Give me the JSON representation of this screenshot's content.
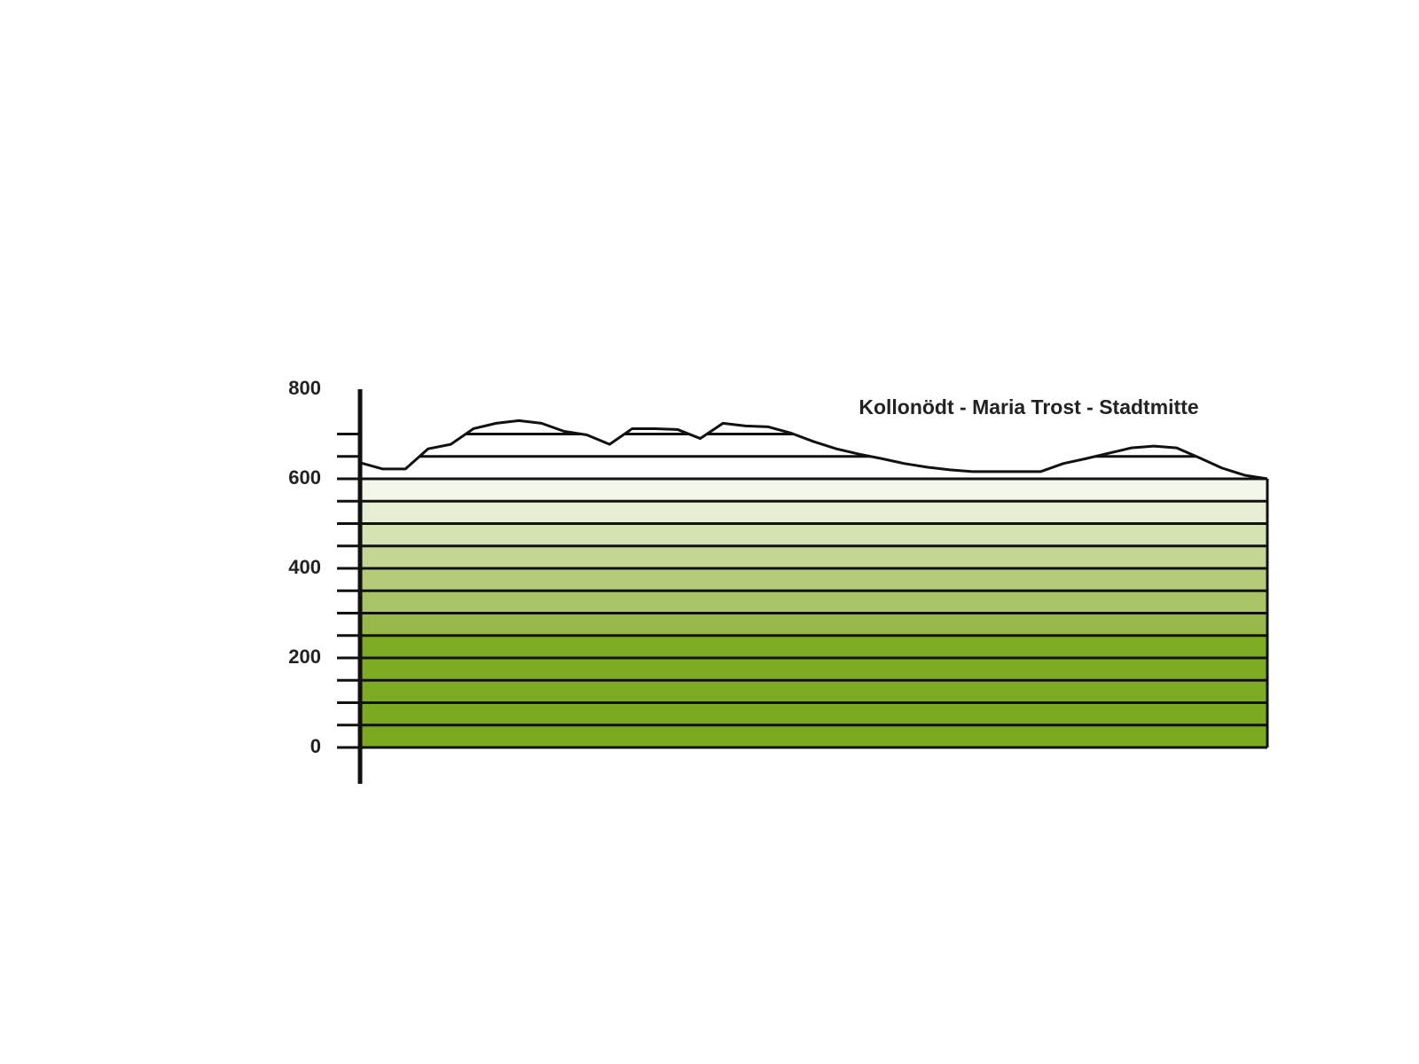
{
  "chart_data": {
    "type": "line",
    "title": "Kollonödt - Maria Trost - Stadtmitte",
    "categories": [
      null,
      null,
      null,
      null,
      null,
      null,
      null,
      null,
      null,
      null,
      null,
      null,
      null,
      null,
      null,
      null,
      null,
      null,
      null,
      null,
      null,
      null,
      null,
      null,
      null,
      null,
      null,
      null,
      null,
      null,
      null,
      null,
      null,
      null,
      null,
      null,
      null,
      null,
      null,
      null,
      null
    ],
    "series": [
      {
        "color": "#111111",
        "values": [
          636,
          622,
          622,
          667,
          677,
          712,
          724,
          730,
          724,
          706,
          698,
          677,
          712,
          712,
          710,
          690,
          724,
          718,
          716,
          702,
          683,
          667,
          655,
          645,
          634,
          626,
          620,
          616,
          616,
          616,
          616,
          634,
          645,
          657,
          669,
          673,
          669,
          647,
          624,
          608,
          600
        ]
      }
    ],
    "ylim": [
      0,
      800
    ],
    "yticks": [
      0,
      200,
      400,
      600,
      800
    ],
    "minor_yticks": [
      0,
      50,
      100,
      150,
      200,
      250,
      300,
      350,
      400,
      450,
      500,
      550,
      600,
      650,
      700
    ],
    "fill_base": 600,
    "band_colors": [
      "#7ba91f",
      "#7caa21",
      "#7dab23",
      "#7eab24",
      "#7fac25",
      "#96b94a",
      "#a8c466",
      "#b4cc78",
      "#c3d693",
      "#d5e2b3",
      "#e6eed3",
      "#f3f7ea"
    ]
  }
}
